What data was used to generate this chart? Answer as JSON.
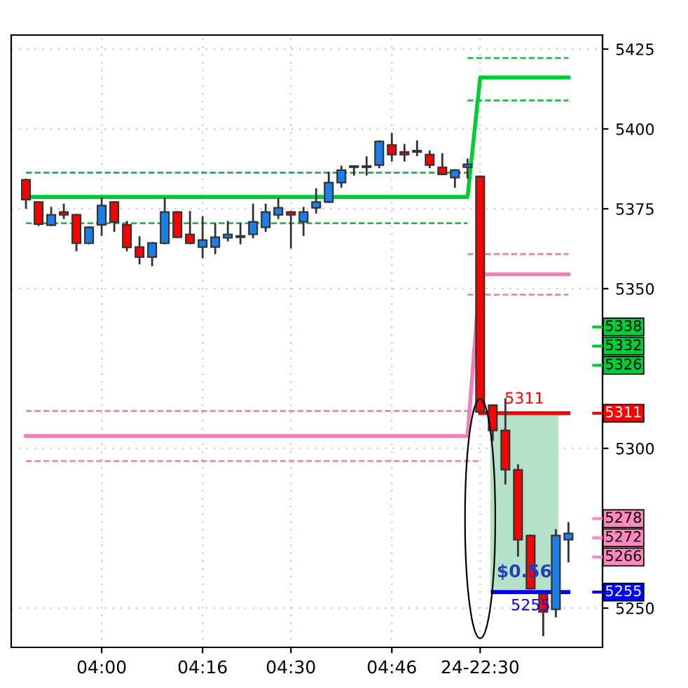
{
  "chart_data": {
    "type": "candlestick",
    "categories": [
      null,
      null,
      null,
      null,
      null,
      null,
      "04:00",
      null,
      null,
      null,
      null,
      null,
      null,
      null,
      "04:16",
      null,
      null,
      null,
      null,
      null,
      null,
      "04:30",
      null,
      null,
      null,
      null,
      null,
      null,
      null,
      "04:46",
      null,
      null,
      null,
      null,
      null,
      null,
      "24-22:30",
      null,
      null,
      null,
      null,
      null,
      null,
      null
    ],
    "ohlc": [
      [
        5384.1,
        5384.1,
        5375.3,
        5377.9
      ],
      [
        5377.1,
        5377.1,
        5369.9,
        5370.2
      ],
      [
        5369.9,
        5375.3,
        5369.9,
        5373.1
      ],
      [
        5374.0,
        5376.3,
        5372.1,
        5373.1
      ],
      [
        5373.1,
        5373.1,
        5362.0,
        5364.2
      ],
      [
        5364.2,
        5369.2,
        5364.2,
        5369.2
      ],
      [
        5370.0,
        5378.2,
        5366.8,
        5376.0
      ],
      [
        5377.1,
        5377.1,
        5368.1,
        5370.8
      ],
      [
        5370.0,
        5370.9,
        5362.0,
        5362.9
      ],
      [
        5363.0,
        5366.1,
        5357.9,
        5359.9
      ],
      [
        5359.9,
        5364.3,
        5357.3,
        5364.3
      ],
      [
        5364.2,
        5378.2,
        5364.2,
        5374.0
      ],
      [
        5374.0,
        5374.0,
        5366.1,
        5366.1
      ],
      [
        5367.0,
        5374.0,
        5364.2,
        5364.2
      ],
      [
        5363.0,
        5372.4,
        5359.8,
        5365.2
      ],
      [
        5363.0,
        5370.2,
        5361.1,
        5366.1
      ],
      [
        5365.9,
        5370.9,
        5365.1,
        5367.0
      ],
      [
        5366.1,
        5370.2,
        5364.2,
        5366.1
      ],
      [
        5367.0,
        5376.3,
        5366.1,
        5370.9
      ],
      [
        5369.2,
        5376.3,
        5368.1,
        5374.0
      ],
      [
        5373.1,
        5378.2,
        5372.1,
        5375.3
      ],
      [
        5374.0,
        5374.0,
        5362.9,
        5373.1
      ],
      [
        5370.9,
        5375.3,
        5366.8,
        5374.0
      ],
      [
        5375.3,
        5381.1,
        5373.8,
        5377.1
      ],
      [
        5377.1,
        5386.3,
        5377.1,
        5383.2
      ],
      [
        5383.2,
        5388.2,
        5381.9,
        5387.1
      ],
      [
        5388.0,
        5388.0,
        5385.7,
        5388.0
      ],
      [
        5388.0,
        5391.1,
        5385.7,
        5388.0
      ],
      [
        5388.7,
        5396.1,
        5388.0,
        5396.1
      ],
      [
        5395.0,
        5398.4,
        5390.1,
        5392.0
      ],
      [
        5392.8,
        5395.0,
        5390.1,
        5392.0
      ],
      [
        5392.8,
        5396.1,
        5391.8,
        5392.8
      ],
      [
        5392.0,
        5393.0,
        5388.0,
        5388.7
      ],
      [
        5388.0,
        5392.1,
        5385.8,
        5385.8
      ],
      [
        5384.8,
        5387.1,
        5381.9,
        5387.1
      ],
      [
        5388.0,
        5390.4,
        5384.8,
        5388.9
      ],
      [
        5385.1,
        5385.1,
        5311.4,
        5311.4
      ],
      [
        5313.5,
        5313.5,
        5302.6,
        5305.6
      ],
      [
        5305.6,
        5315.4,
        5289.0,
        5293.3
      ],
      [
        5293.3,
        5294.7,
        5266.4,
        5271.4
      ],
      [
        5272.7,
        5272.7,
        5256.1,
        5256.1
      ],
      [
        5254.4,
        5254.4,
        5241.5,
        5248.8
      ],
      [
        5249.6,
        5274.4,
        5247.4,
        5272.7
      ],
      [
        5271.4,
        5276.6,
        5264.6,
        5273.4
      ]
    ],
    "colors": [
      "#ff0000",
      "#ff0000",
      "#1a7fe8",
      "#ff0000",
      "#ff0000",
      "#1a7fe8",
      "#1a7fe8",
      "#ff0000",
      "#ff0000",
      "#ff0000",
      "#1a7fe8",
      "#1a7fe8",
      "#ff0000",
      "#ff0000",
      "#1a7fe8",
      "#1a7fe8",
      "#1a7fe8",
      "#1a7fe8",
      "#1a7fe8",
      "#1a7fe8",
      "#1a7fe8",
      "#ff0000",
      "#1a7fe8",
      "#1a7fe8",
      "#1a7fe8",
      "#1a7fe8",
      "#1a7fe8",
      "#1a7fe8",
      "#1a7fe8",
      "#ff0000",
      "#ff0000",
      "#1a7fe8",
      "#ff0000",
      "#ff0000",
      "#1a7fe8",
      "#1a7fe8",
      "#ff0000",
      "#ff0000",
      "#ff0000",
      "#ff0000",
      "#ff0000",
      "#ff0000",
      "#1a7fe8",
      "#1a7fe8"
    ],
    "series": [
      {
        "type": "line",
        "line_style": "dashed",
        "color": "#22bb44",
        "values": [
          5386.3,
          5386.3,
          5386.3,
          5386.3,
          5386.3,
          5386.3,
          5386.3,
          5386.3,
          5386.3,
          5386.3,
          5386.3,
          5386.3,
          5386.3,
          5386.3,
          5386.3,
          5386.3,
          5386.3,
          5386.3,
          5386.3,
          5386.3,
          5386.3,
          5386.3,
          5386.3,
          5386.3,
          5386.3,
          5386.3,
          5386.3,
          5386.3,
          5386.3,
          5386.3,
          5386.3,
          5386.3,
          5386.3,
          5386.3,
          5386.3,
          5386.3,
          null,
          null,
          null,
          null,
          null,
          null,
          null,
          null
        ]
      },
      {
        "type": "line",
        "line_style": "dashed",
        "color": "#22bb44",
        "values": [
          5370.5,
          5370.5,
          5370.5,
          5370.5,
          5370.5,
          5370.5,
          5370.5,
          5370.5,
          5370.5,
          5370.5,
          5370.5,
          5370.5,
          5370.5,
          5370.5,
          5370.5,
          5370.5,
          5370.5,
          5370.5,
          5370.5,
          5370.5,
          5370.5,
          5370.5,
          5370.5,
          5370.5,
          5370.5,
          5370.5,
          5370.5,
          5370.5,
          5370.5,
          5370.5,
          5370.5,
          5370.5,
          5370.5,
          5370.5,
          5370.5,
          5370.5,
          null,
          null,
          null,
          null,
          null,
          null,
          null,
          null
        ]
      },
      {
        "type": "line",
        "line_style": "dashed",
        "color": "#22bb44",
        "values": [
          null,
          null,
          null,
          null,
          null,
          null,
          null,
          null,
          null,
          null,
          null,
          null,
          null,
          null,
          null,
          null,
          null,
          null,
          null,
          null,
          null,
          null,
          null,
          null,
          null,
          null,
          null,
          null,
          null,
          null,
          null,
          null,
          null,
          null,
          null,
          5422.2,
          5422.2,
          5422.2,
          5422.2,
          5422.2,
          5422.2,
          5422.2,
          5422.2,
          5422.2
        ]
      },
      {
        "type": "line",
        "line_style": "dashed",
        "color": "#22bb44",
        "values": [
          null,
          null,
          null,
          null,
          null,
          null,
          null,
          null,
          null,
          null,
          null,
          null,
          null,
          null,
          null,
          null,
          null,
          null,
          null,
          null,
          null,
          null,
          null,
          null,
          null,
          null,
          null,
          null,
          null,
          null,
          null,
          null,
          null,
          null,
          null,
          5408.9,
          5408.9,
          5408.9,
          5408.9,
          5408.9,
          5408.9,
          5408.9,
          5408.9,
          5408.9
        ]
      },
      {
        "type": "line",
        "line_style": "dashed",
        "color": "#f080b8",
        "values": [
          null,
          null,
          null,
          null,
          null,
          null,
          null,
          null,
          null,
          null,
          null,
          null,
          null,
          null,
          null,
          null,
          null,
          null,
          null,
          null,
          null,
          null,
          null,
          null,
          null,
          null,
          null,
          null,
          null,
          null,
          null,
          null,
          null,
          null,
          null,
          5360.8,
          5360.8,
          5360.8,
          5360.8,
          5360.8,
          5360.8,
          5360.8,
          5360.8,
          5360.8
        ]
      },
      {
        "type": "line",
        "line_style": "dashed",
        "color": "#f080b8",
        "values": [
          null,
          null,
          null,
          null,
          null,
          null,
          null,
          null,
          null,
          null,
          null,
          null,
          null,
          null,
          null,
          null,
          null,
          null,
          null,
          null,
          null,
          null,
          null,
          null,
          null,
          null,
          null,
          null,
          null,
          null,
          null,
          null,
          null,
          null,
          null,
          5348.1,
          5348.1,
          5348.1,
          5348.1,
          5348.1,
          5348.1,
          5348.1,
          5348.1,
          5348.1
        ]
      },
      {
        "type": "line",
        "line_style": "dashed",
        "color": "#f080b8",
        "values": [
          5311.7,
          5311.7,
          5311.7,
          5311.7,
          5311.7,
          5311.7,
          5311.7,
          5311.7,
          5311.7,
          5311.7,
          5311.7,
          5311.7,
          5311.7,
          5311.7,
          5311.7,
          5311.7,
          5311.7,
          5311.7,
          5311.7,
          5311.7,
          5311.7,
          5311.7,
          5311.7,
          5311.7,
          5311.7,
          5311.7,
          5311.7,
          5311.7,
          5311.7,
          5311.7,
          5311.7,
          5311.7,
          5311.7,
          5311.7,
          5311.7,
          5311.7,
          5311.7,
          null,
          null,
          null,
          null,
          null,
          null,
          null
        ]
      },
      {
        "type": "line",
        "line_style": "dashed",
        "color": "#f080b8",
        "values": [
          5296.0,
          5296.0,
          5296.0,
          5296.0,
          5296.0,
          5296.0,
          5296.0,
          5296.0,
          5296.0,
          5296.0,
          5296.0,
          5296.0,
          5296.0,
          5296.0,
          5296.0,
          5296.0,
          5296.0,
          5296.0,
          5296.0,
          5296.0,
          5296.0,
          5296.0,
          5296.0,
          5296.0,
          5296.0,
          5296.0,
          5296.0,
          5296.0,
          5296.0,
          5296.0,
          5296.0,
          5296.0,
          5296.0,
          5296.0,
          5296.0,
          5296.0,
          5296.0,
          null,
          null,
          null,
          null,
          null,
          null,
          null
        ]
      },
      {
        "type": "line",
        "line_style": "solid",
        "color": "#00cc33",
        "values": [
          5378.7,
          5378.7,
          5378.7,
          5378.7,
          5378.7,
          5378.7,
          5378.7,
          5378.7,
          5378.7,
          5378.7,
          5378.7,
          5378.7,
          5378.7,
          5378.7,
          5378.7,
          5378.7,
          5378.7,
          5378.7,
          5378.7,
          5378.7,
          5378.7,
          5378.7,
          5378.7,
          5378.7,
          5378.7,
          5378.7,
          5378.7,
          5378.7,
          5378.7,
          5378.7,
          5378.7,
          5378.7,
          5378.7,
          5378.7,
          5378.7,
          5378.7,
          5416.1,
          5416.1,
          5416.1,
          5416.1,
          5416.1,
          5416.1,
          5416.1,
          5416.1
        ]
      },
      {
        "type": "line",
        "line_style": "solid",
        "color": "#f080b8",
        "values": [
          5303.9,
          5303.9,
          5303.9,
          5303.9,
          5303.9,
          5303.9,
          5303.9,
          5303.9,
          5303.9,
          5303.9,
          5303.9,
          5303.9,
          5303.9,
          5303.9,
          5303.9,
          5303.9,
          5303.9,
          5303.9,
          5303.9,
          5303.9,
          5303.9,
          5303.9,
          5303.9,
          5303.9,
          5303.9,
          5303.9,
          5303.9,
          5303.9,
          5303.9,
          5303.9,
          5303.9,
          5303.9,
          5303.9,
          5303.9,
          5303.9,
          5303.9,
          5354.5,
          5354.5,
          5354.5,
          5354.5,
          5354.5,
          5354.5,
          5354.5,
          5354.5
        ]
      },
      {
        "type": "line",
        "line_style": "solid",
        "color": "#ff0000",
        "name": "5311",
        "values": [
          null,
          null,
          null,
          null,
          null,
          null,
          null,
          null,
          null,
          null,
          null,
          null,
          null,
          null,
          null,
          null,
          null,
          null,
          null,
          null,
          null,
          null,
          null,
          null,
          null,
          null,
          null,
          null,
          null,
          null,
          null,
          null,
          null,
          null,
          null,
          null,
          5311,
          5311,
          5311,
          5311,
          5311,
          5311,
          5311,
          5311
        ]
      },
      {
        "type": "line",
        "line_style": "solid",
        "color": "#0000ff",
        "name": "5255",
        "values": [
          null,
          null,
          null,
          null,
          null,
          null,
          null,
          null,
          null,
          null,
          null,
          null,
          null,
          null,
          null,
          null,
          null,
          null,
          null,
          null,
          null,
          null,
          null,
          null,
          null,
          null,
          null,
          null,
          null,
          null,
          null,
          null,
          null,
          null,
          null,
          null,
          null,
          5255,
          5255,
          5255,
          5255,
          5255,
          5255,
          5255
        ]
      }
    ],
    "bands": [
      {
        "axis": "y",
        "from": 5255,
        "to": 5311,
        "label": "$0.56",
        "color": "#a8dcc0"
      }
    ],
    "ref_lines": [
      {
        "axis": "y",
        "value": 5338,
        "label": "5338",
        "color": "#00cc33"
      },
      {
        "axis": "y",
        "value": 5332,
        "label": "5332",
        "color": "#00cc33"
      },
      {
        "axis": "y",
        "value": 5326,
        "label": "5326",
        "color": "#00cc33"
      },
      {
        "axis": "y",
        "value": 5311,
        "label": "5311",
        "color": "#ff0000"
      },
      {
        "axis": "y",
        "value": 5278,
        "label": "5278",
        "color": "#ff88c0"
      },
      {
        "axis": "y",
        "value": 5272,
        "label": "5272",
        "color": "#ff88c0"
      },
      {
        "axis": "y",
        "value": 5266,
        "label": "5266",
        "color": "#ff88c0"
      },
      {
        "axis": "y",
        "value": 5255,
        "label": "5255",
        "color": "#0000ff"
      }
    ],
    "ylim": [
      5237.7,
      5429.4
    ],
    "yticks": [
      5250,
      5300,
      5350,
      5375,
      5400,
      5425
    ],
    "grid": true
  }
}
